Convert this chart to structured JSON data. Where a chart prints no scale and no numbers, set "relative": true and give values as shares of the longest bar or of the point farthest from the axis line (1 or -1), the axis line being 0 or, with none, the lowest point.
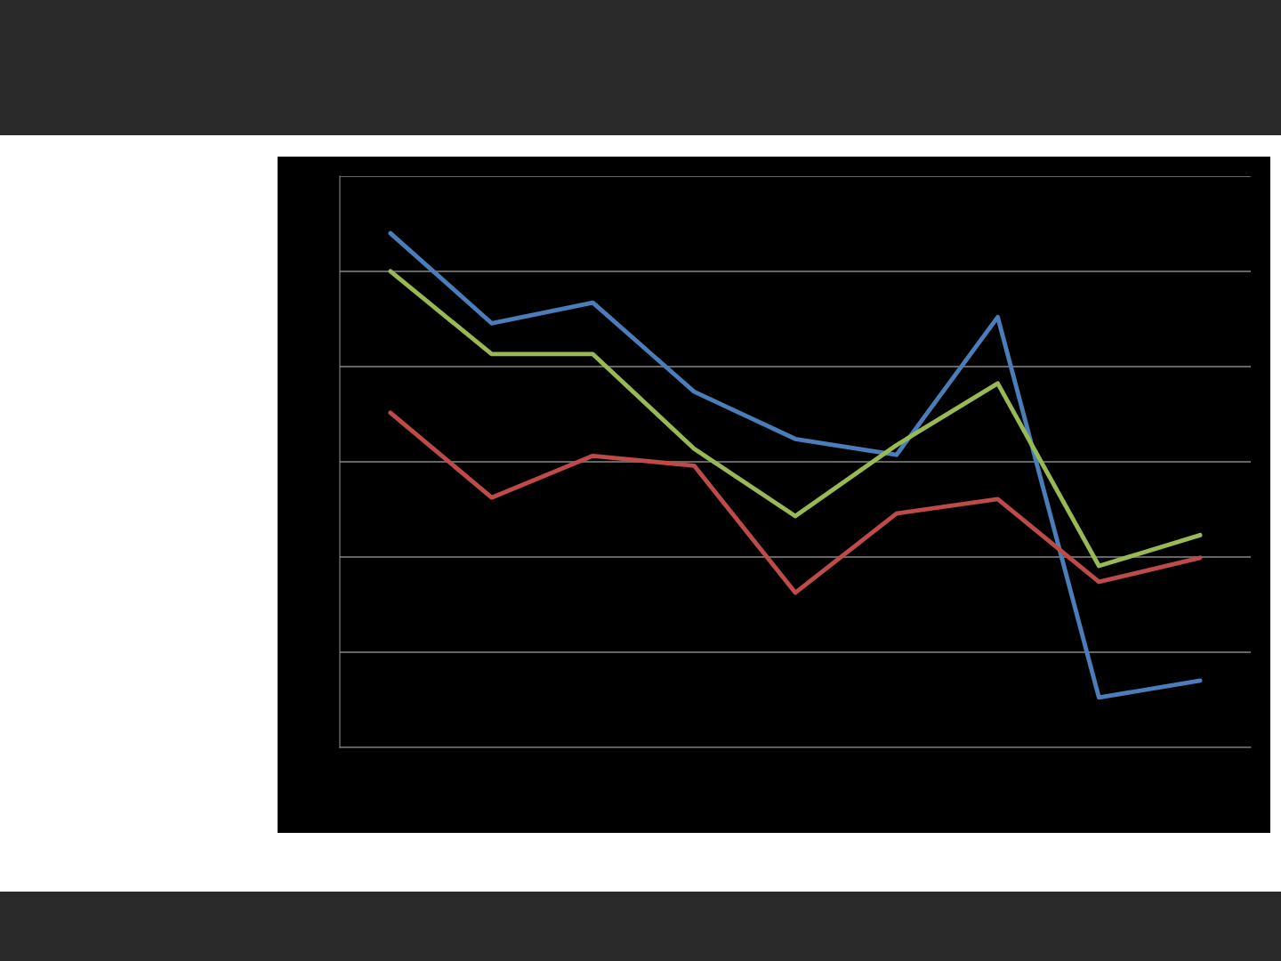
{
  "chart_data": {
    "type": "line",
    "relative": true,
    "categories": [
      null,
      null,
      null,
      null,
      null,
      null,
      null,
      null,
      null
    ],
    "series": [
      {
        "color": "#4a7ebb",
        "values": [
          1,
          0.825,
          0.865,
          0.692,
          0.6,
          0.569,
          0.837,
          0.097,
          0.13
        ]
      },
      {
        "color": "#be4b48",
        "values": [
          0.651,
          0.486,
          0.567,
          0.548,
          0.301,
          0.455,
          0.483,
          0.322,
          0.369
        ]
      },
      {
        "color": "#98b954",
        "values": [
          0.926,
          0.765,
          0.765,
          0.581,
          0.45,
          0.588,
          0.708,
          0.353,
          0.413
        ]
      }
    ],
    "grid": "y",
    "marker": "none",
    "line_style": "solid"
  }
}
